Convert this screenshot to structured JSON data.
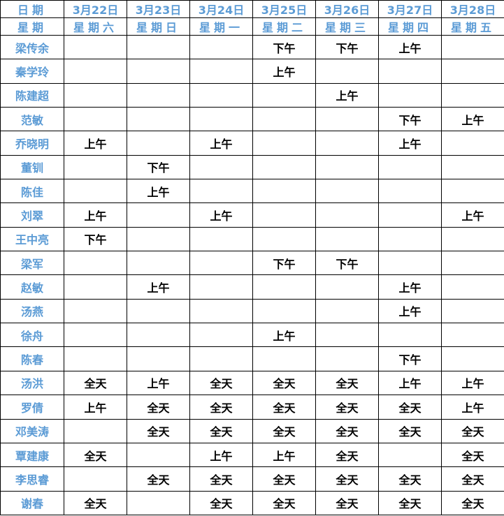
{
  "colors": {
    "header_text": "#5b9bd5",
    "body_text": "#000000",
    "border_color": "#000000"
  },
  "table": {
    "header": {
      "date_label": "日期",
      "week_label": "星期",
      "dates": [
        "3月22日",
        "3月23日",
        "3月24日",
        "3月25日",
        "3月26日",
        "3月27日",
        "3月28日"
      ],
      "weekdays": [
        "星期六",
        "星期日",
        "星期一",
        "星期二",
        "星期三",
        "星期四",
        "星期五"
      ]
    },
    "legend": {
      "morning": "上午",
      "afternoon": "下午",
      "all_day": "全天"
    },
    "rows": [
      {
        "name": "梁传余",
        "cells": [
          "",
          "",
          "",
          "下午",
          "下午",
          "上午",
          ""
        ]
      },
      {
        "name": "秦学玲",
        "cells": [
          "",
          "",
          "",
          "上午",
          "",
          "",
          ""
        ]
      },
      {
        "name": "陈建超",
        "cells": [
          "",
          "",
          "",
          "",
          "上午",
          "",
          ""
        ]
      },
      {
        "name": "范敏",
        "cells": [
          "",
          "",
          "",
          "",
          "",
          "下午",
          "上午"
        ]
      },
      {
        "name": "乔晓明",
        "cells": [
          "上午",
          "",
          "上午",
          "",
          "",
          "上午",
          ""
        ]
      },
      {
        "name": "董钏",
        "cells": [
          "",
          "下午",
          "",
          "",
          "",
          "",
          ""
        ]
      },
      {
        "name": "陈佳",
        "cells": [
          "",
          "上午",
          "",
          "",
          "",
          "",
          ""
        ]
      },
      {
        "name": "刘翠",
        "cells": [
          "上午",
          "",
          "上午",
          "",
          "",
          "",
          "上午"
        ]
      },
      {
        "name": "王中亮",
        "cells": [
          "下午",
          "",
          "",
          "",
          "",
          "",
          ""
        ]
      },
      {
        "name": "梁军",
        "cells": [
          "",
          "",
          "",
          "下午",
          "下午",
          "",
          ""
        ]
      },
      {
        "name": "赵敏",
        "cells": [
          "",
          "上午",
          "",
          "",
          "",
          "上午",
          ""
        ]
      },
      {
        "name": "汤燕",
        "cells": [
          "",
          "",
          "",
          "",
          "",
          "上午",
          ""
        ]
      },
      {
        "name": "徐舟",
        "cells": [
          "",
          "",
          "",
          "上午",
          "",
          "",
          ""
        ]
      },
      {
        "name": "陈春",
        "cells": [
          "",
          "",
          "",
          "",
          "",
          "下午",
          ""
        ]
      },
      {
        "name": "汤洪",
        "cells": [
          "全天",
          "上午",
          "全天",
          "全天",
          "全天",
          "上午",
          "上午"
        ]
      },
      {
        "name": "罗倩",
        "cells": [
          "上午",
          "全天",
          "全天",
          "全天",
          "全天",
          "全天",
          "上午"
        ]
      },
      {
        "name": "邓美涛",
        "cells": [
          "",
          "全天",
          "全天",
          "全天",
          "全天",
          "全天",
          "全天"
        ]
      },
      {
        "name": "覃建康",
        "cells": [
          "全天",
          "",
          "上午",
          "上午",
          "全天",
          "",
          "全天"
        ]
      },
      {
        "name": "李思睿",
        "cells": [
          "",
          "全天",
          "全天",
          "全天",
          "全天",
          "全天",
          "全天"
        ]
      },
      {
        "name": "谢春",
        "cells": [
          "全天",
          "",
          "全天",
          "全天",
          "全天",
          "全天",
          "全天"
        ]
      }
    ]
  }
}
